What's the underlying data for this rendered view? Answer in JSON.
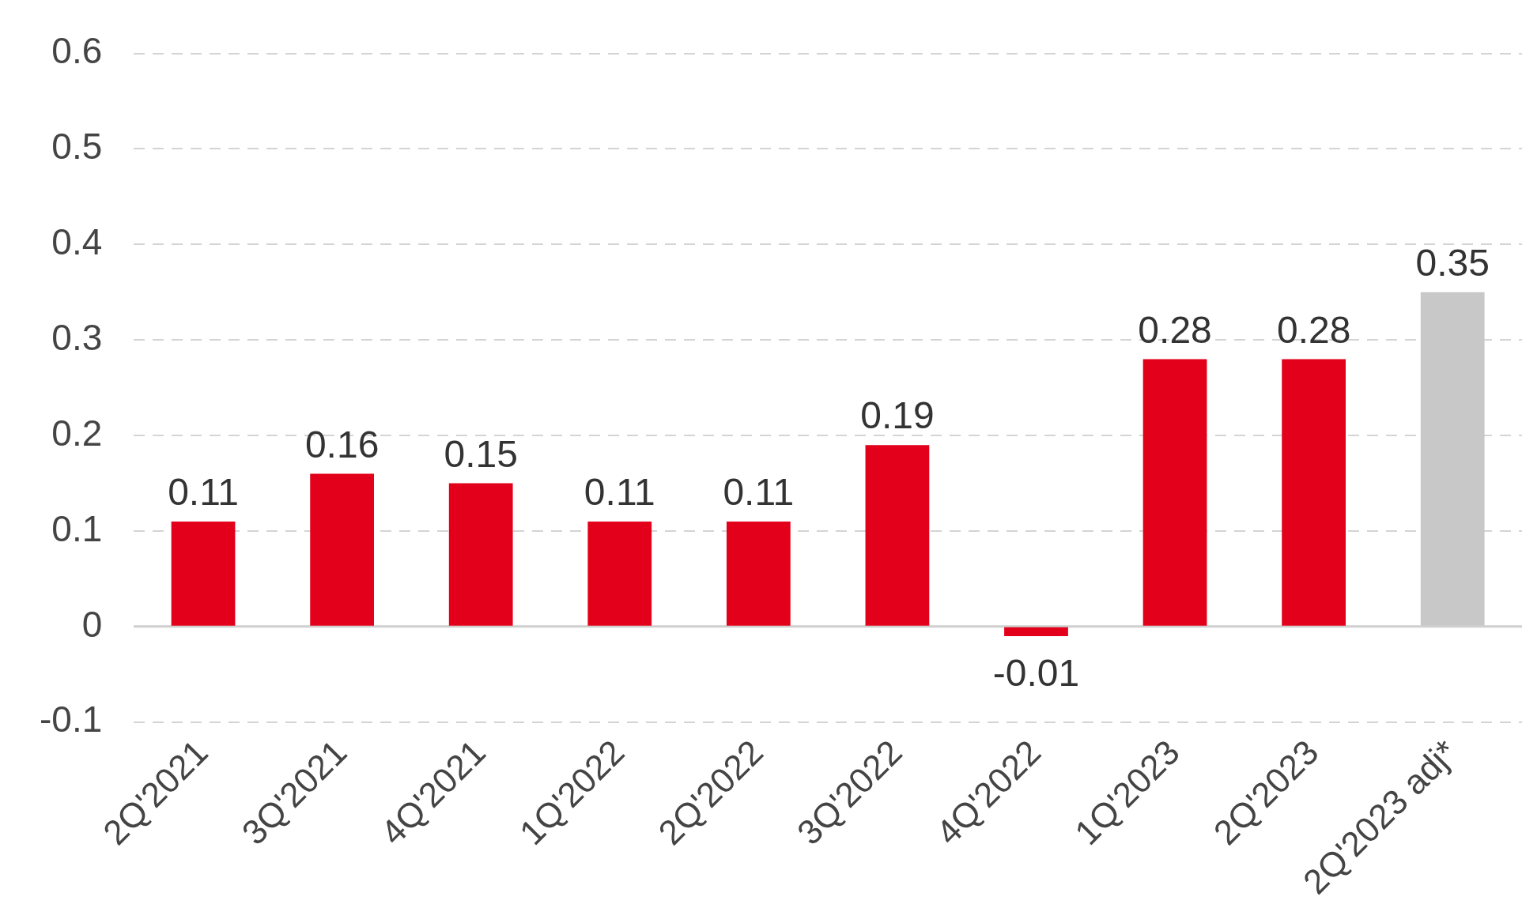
{
  "chart_data": {
    "type": "bar",
    "categories": [
      "2Q'2021",
      "3Q'2021",
      "4Q'2021",
      "1Q'2022",
      "2Q'2022",
      "3Q'2022",
      "4Q'2022",
      "1Q'2023",
      "2Q'2023",
      "2Q'2023 adj*"
    ],
    "values": [
      0.11,
      0.16,
      0.15,
      0.11,
      0.11,
      0.19,
      -0.01,
      0.28,
      0.28,
      0.35
    ],
    "colors": [
      "#e2001a",
      "#e2001a",
      "#e2001a",
      "#e2001a",
      "#e2001a",
      "#e2001a",
      "#e2001a",
      "#e2001a",
      "#e2001a",
      "#c8c8c8"
    ],
    "ylim": [
      -0.1,
      0.6
    ],
    "yticks": [
      -0.1,
      0,
      0.1,
      0.2,
      0.3,
      0.4,
      0.5,
      0.6
    ],
    "grid": "y",
    "legend": false,
    "data_labels": true
  }
}
